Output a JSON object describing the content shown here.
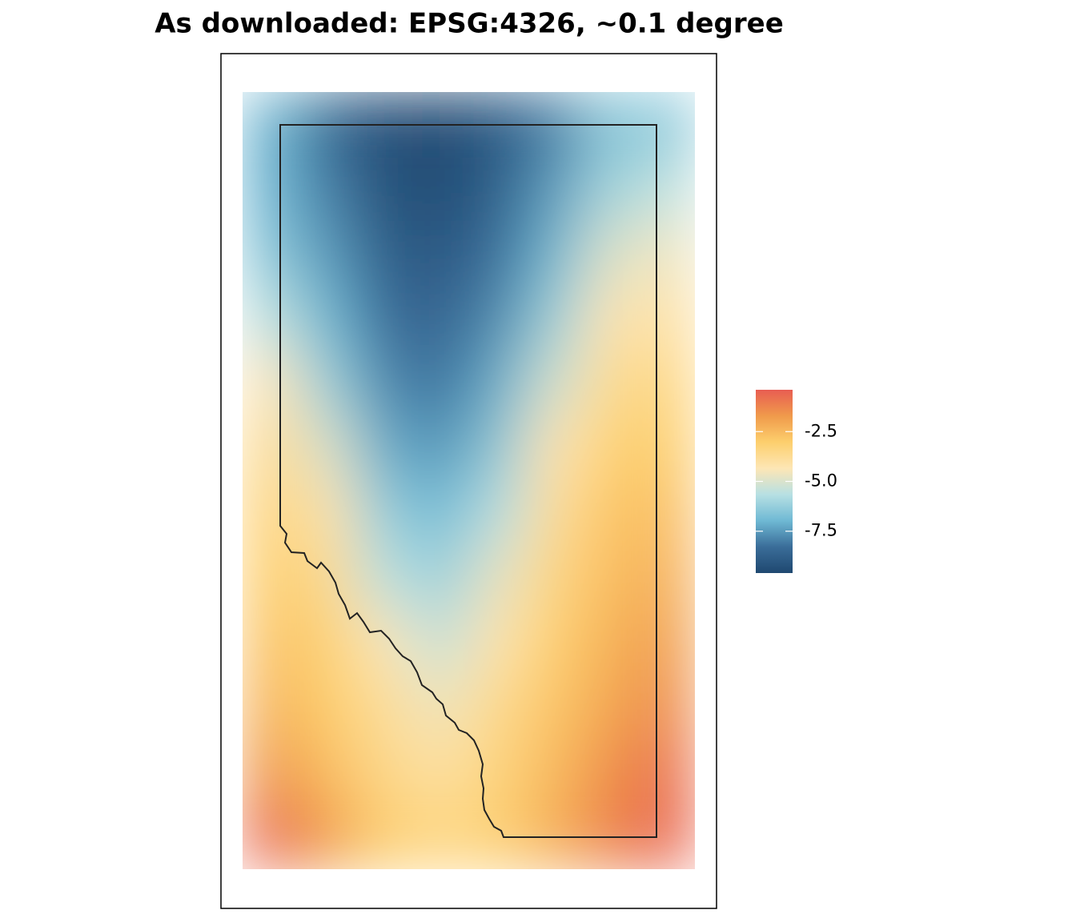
{
  "chart_data": {
    "type": "raster",
    "title": "As downloaded: EPSG:4326, ~0.1 degree",
    "values": [
      [
        -7,
        -8.5,
        -9.3,
        -9.5,
        -9,
        -8,
        -6.5,
        -6.5
      ],
      [
        -7,
        -8,
        -9.2,
        -9.4,
        -8.8,
        -7.5,
        -6,
        -5.5
      ],
      [
        -6.5,
        -7.5,
        -8.8,
        -9,
        -8.3,
        -7,
        -5,
        -4.6
      ],
      [
        -5.5,
        -7,
        -8.3,
        -8.6,
        -7.8,
        -6.2,
        -4.3,
        -4
      ],
      [
        -4.3,
        -6.2,
        -7.8,
        -8.2,
        -7.2,
        -5.2,
        -3.7,
        -3.4
      ],
      [
        -3.6,
        -5,
        -7.2,
        -7.6,
        -6.5,
        -4.3,
        -3.2,
        -3
      ],
      [
        -3.2,
        -4.2,
        -6.3,
        -6.9,
        -5.7,
        -3.8,
        -2.8,
        -2.6
      ],
      [
        -3,
        -3.6,
        -5.5,
        -6.2,
        -4.8,
        -3.4,
        -2.6,
        -2.2
      ],
      [
        -2.7,
        -3.2,
        -4.4,
        -5.4,
        -4.2,
        -3.1,
        -2.3,
        -1.8
      ],
      [
        -2.3,
        -3,
        -3.8,
        -4.6,
        -3.6,
        -2.8,
        -2,
        -1.4
      ],
      [
        -1.6,
        -2.6,
        -3.5,
        -4,
        -3.3,
        -2.5,
        -1.5,
        -0.8
      ],
      [
        -0.6,
        -1.8,
        -3,
        -3.4,
        -3.1,
        -2.2,
        -1.2,
        -0.6
      ]
    ],
    "clim": [
      -9.6,
      -0.4
    ],
    "cticks": [
      -7.5,
      {
        "value": -5,
        "label": "-5.0"
      },
      -2.5
    ],
    "colors": [
      "#1f4870",
      "#3a6d99",
      "#6fb9d4",
      "#b7e0e3",
      "#fde6b5",
      "#fdcf6d",
      "#f09a4b",
      "#e85d52"
    ]
  }
}
